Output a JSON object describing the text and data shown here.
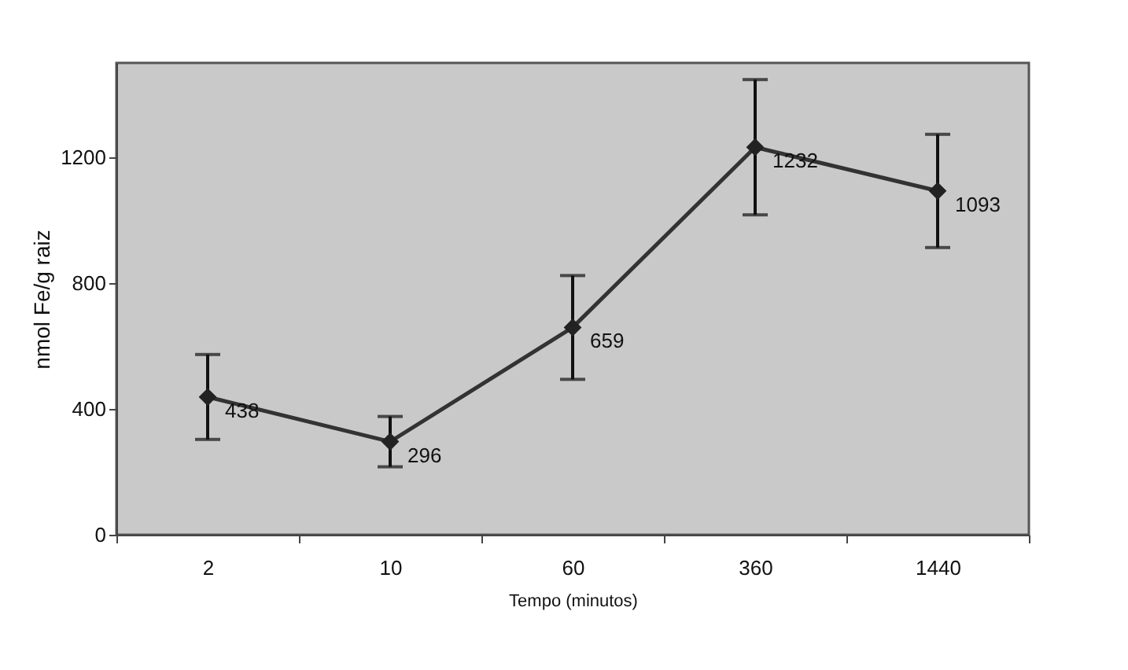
{
  "chart_data": {
    "type": "line",
    "xlabel": "Tempo (minutos)",
    "ylabel": "nmol Fe/g raiz",
    "categories": [
      "2",
      "10",
      "60",
      "360",
      "1440"
    ],
    "series": [
      {
        "color": "#333333",
        "values": [
          438,
          296,
          659,
          1232,
          1093
        ],
        "errors": [
          135,
          80,
          165,
          215,
          180
        ]
      }
    ],
    "ylim": [
      0,
      1500
    ],
    "yticks": [
      0,
      400,
      800,
      1200
    ],
    "data_labels": true,
    "marker": "diamond",
    "grid": false
  }
}
